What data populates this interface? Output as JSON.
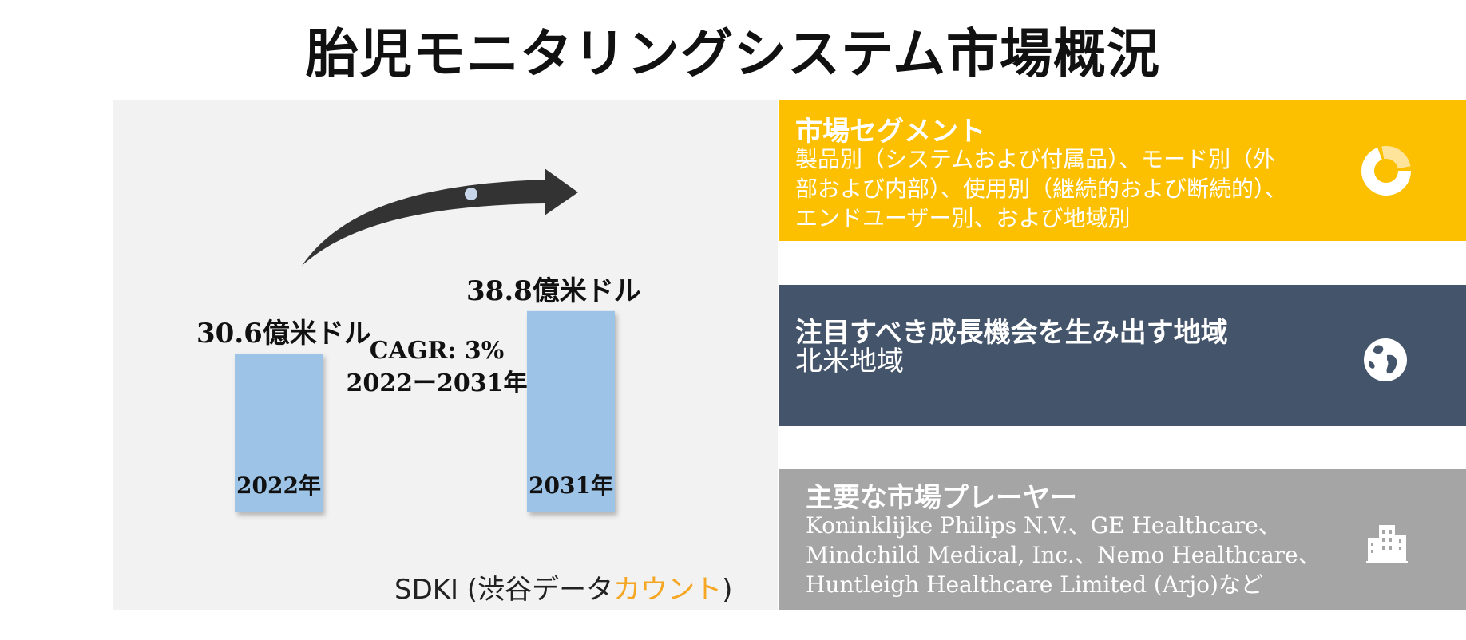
{
  "title": "胎児モニタリングシステム市場概況",
  "colors": {
    "bar": "#9dc3e6",
    "arrow": "#333333",
    "yellow": "#fdc000",
    "navy": "#44546a",
    "gray": "#a5a5a5",
    "accent": "#f5a623"
  },
  "chart_data": {
    "type": "bar",
    "categories": [
      "2022年",
      "2031年"
    ],
    "values": [
      30.6,
      38.8
    ],
    "value_labels": [
      "30.6億米ドル",
      "38.8億米ドル"
    ],
    "unit": "億米ドル",
    "annotation": {
      "cagr": "CAGR: 3%",
      "period": "2022ー2031年"
    }
  },
  "source": {
    "prefix": "SDKI (渋谷データ",
    "accent": "カウント",
    "suffix": ")"
  },
  "panels": {
    "segments": {
      "heading": "市場セグメント",
      "lines": [
        "製品別（システムおよび付属品）、モード別（外",
        "部および内部）、使用別（継続的および断続的）、",
        "エンドユーザー別、および地域別"
      ],
      "icon": "donut-chart-icon"
    },
    "regions": {
      "heading": "注目すべき成長機会を生み出す地域",
      "lines": [
        "北米地域"
      ],
      "icon": "globe-icon"
    },
    "players": {
      "heading": "主要な市場プレーヤー",
      "lines": [
        "Koninklijke Philips N.V.、GE Healthcare、",
        "Mindchild Medical, Inc.、Nemo Healthcare、",
        "Huntleigh Healthcare Limited (Arjo)など"
      ],
      "icon": "buildings-icon"
    }
  }
}
